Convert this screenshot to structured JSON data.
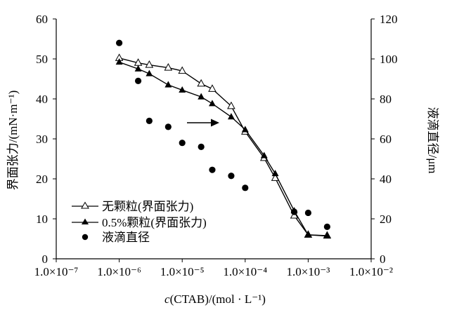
{
  "chart_data": {
    "type": "scatter",
    "title": "",
    "xlabel": "c(CTAB)/(mol · L⁻¹)",
    "xlabel_italic_part": "c",
    "xlabel_rest": "(CTAB)/(mol · L⁻¹)",
    "ylabel_left": "界面张力/(mN·m⁻¹)",
    "ylabel_right": "液滴直径/μm",
    "x_scale": "log",
    "xlim": [
      1e-07,
      0.01
    ],
    "ylim_left": [
      0,
      60
    ],
    "ylim_right": [
      0,
      120
    ],
    "x_ticks": [
      1e-07,
      1e-06,
      1e-05,
      0.0001,
      0.001,
      0.01
    ],
    "x_tick_labels": [
      "1.0×10⁻⁷",
      "1.0×10⁻⁶",
      "1.0×10⁻⁵",
      "1.0×10⁻⁴",
      "1.0×10⁻³",
      "1.0×10⁻²"
    ],
    "y_left_ticks": [
      "0",
      "10",
      "20",
      "30",
      "40",
      "50",
      "60"
    ],
    "y_right_ticks": [
      "0",
      "20",
      "40",
      "60",
      "80",
      "100",
      "120"
    ],
    "grid": false,
    "legend_position": "bottom-left",
    "arrow_annotation": "pointing right (right axis applies)",
    "series": [
      {
        "name": "无颗粒(界面张力)",
        "axis": "left",
        "marker": "open-triangle",
        "line": true,
        "x": [
          1e-06,
          2e-06,
          3e-06,
          6e-06,
          1e-05,
          2e-05,
          3e-05,
          6e-05,
          0.0001,
          0.0002,
          0.0003,
          0.0006,
          0.001,
          0.002
        ],
        "y": [
          50.2,
          49.0,
          48.5,
          47.8,
          47.0,
          43.8,
          42.5,
          38.2,
          31.8,
          25.2,
          20.2,
          10.8,
          6.0,
          5.8
        ]
      },
      {
        "name": "0.5%颗粒(界面张力)",
        "axis": "left",
        "marker": "filled-triangle",
        "line": true,
        "x": [
          1e-06,
          2e-06,
          3e-06,
          6e-06,
          1e-05,
          2e-05,
          3e-05,
          6e-05,
          0.0001,
          0.0002,
          0.0003,
          0.0006,
          0.001,
          0.002
        ],
        "y": [
          49.2,
          47.5,
          46.3,
          43.5,
          42.2,
          40.5,
          38.8,
          35.5,
          32.3,
          25.8,
          21.3,
          12.0,
          6.0,
          5.7
        ]
      },
      {
        "name": "液滴直径",
        "axis": "right",
        "marker": "filled-circle",
        "line": false,
        "x": [
          1e-06,
          2e-06,
          3e-06,
          6e-06,
          1e-05,
          2e-05,
          3e-05,
          6e-05,
          0.0001,
          0.0006,
          0.001,
          0.002
        ],
        "y": [
          108,
          89,
          69,
          66,
          58,
          56,
          44.5,
          41.5,
          35.5,
          23.5,
          23,
          16
        ]
      }
    ]
  }
}
